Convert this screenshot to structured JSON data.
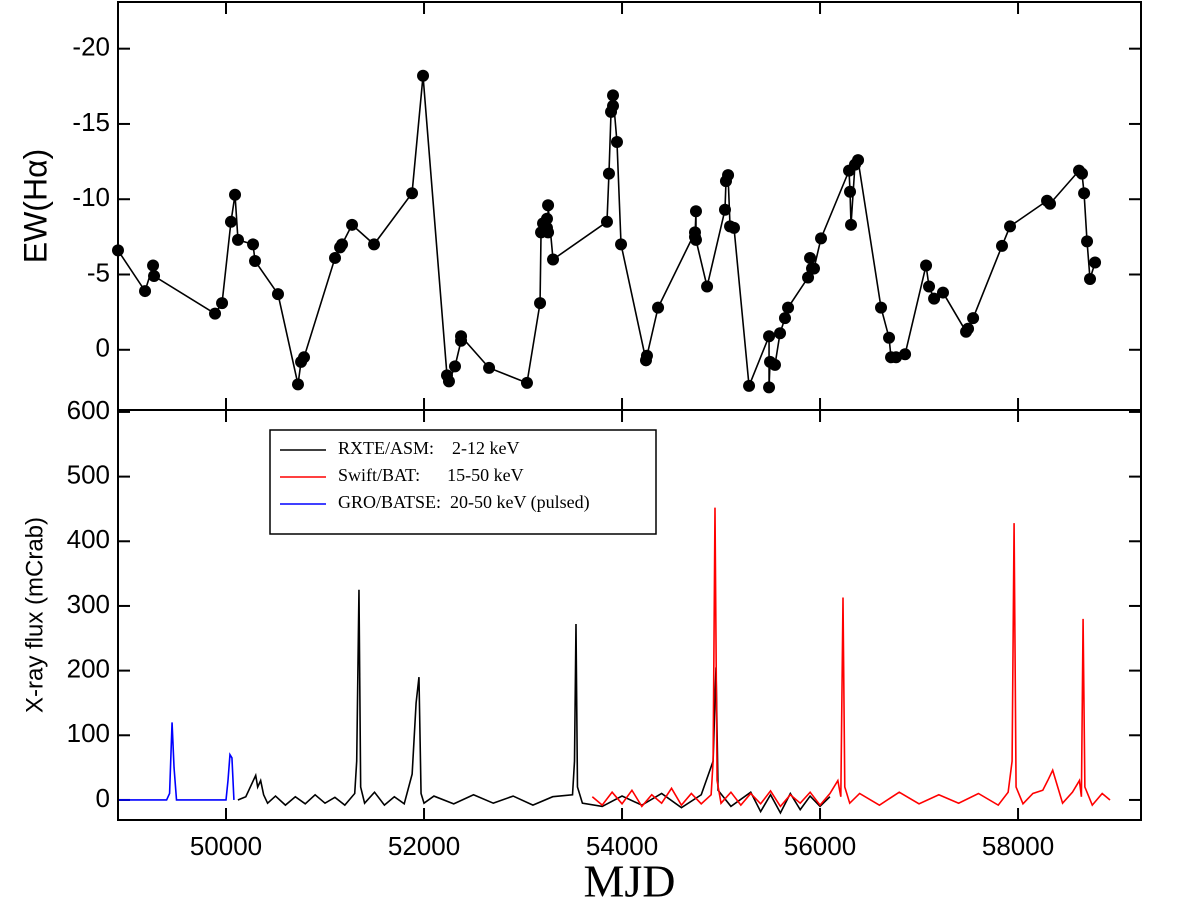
{
  "chart_data": [
    {
      "type": "line",
      "markers": true,
      "ylabel": "EW(Hα)",
      "xlim": [
        48909,
        59242
      ],
      "ylim": [
        4,
        -23.1
      ],
      "xticks": [
        50000,
        52000,
        54000,
        56000,
        58000
      ],
      "xtick_labels": false,
      "yticks": [
        -20,
        -15,
        -10,
        -5,
        0
      ],
      "series": [
        {
          "color": "#000000",
          "x": [
            48909,
            49182,
            49263,
            49273,
            49889,
            49960,
            50050,
            50091,
            50121,
            50273,
            50293,
            50525,
            50727,
            50758,
            50788,
            51101,
            51152,
            51172,
            51273,
            51495,
            51879,
            51990,
            52232,
            52252,
            52313,
            52374,
            52374,
            52657,
            53040,
            53172,
            53182,
            53202,
            53242,
            53242,
            53253,
            53253,
            53303,
            53848,
            53868,
            53889,
            53909,
            53909,
            53949,
            53990,
            54242,
            54252,
            54364,
            54737,
            54737,
            54747,
            54747,
            54859,
            55040,
            55050,
            55071,
            55091,
            55131,
            55283,
            55485,
            55485,
            55495,
            55545,
            55596,
            55646,
            55677,
            55879,
            55899,
            55919,
            55939,
            56010,
            56293,
            56303,
            56313,
            56353,
            56384,
            56616,
            56697,
            56717,
            56768,
            56859,
            57071,
            57101,
            57152,
            57242,
            57475,
            57495,
            57546,
            57838,
            57919,
            58293,
            58323,
            58616,
            58646,
            58667,
            58697,
            58727,
            58778
          ],
          "values": [
            -6.6,
            -3.9,
            -5.6,
            -4.9,
            -2.4,
            -3.1,
            -8.5,
            -10.3,
            -7.3,
            -7.0,
            -5.9,
            -3.7,
            2.3,
            0.8,
            0.5,
            -6.1,
            -6.8,
            -7.0,
            -8.3,
            -7.0,
            -10.4,
            -18.2,
            1.7,
            2.1,
            1.1,
            -0.6,
            -0.9,
            1.2,
            2.2,
            -3.1,
            -7.8,
            -8.4,
            -8.1,
            -8.7,
            -7.8,
            -9.6,
            -6.0,
            -8.5,
            -11.7,
            -15.8,
            -16.2,
            -16.9,
            -13.8,
            -7.0,
            0.7,
            0.4,
            -2.8,
            -7.8,
            -7.5,
            -9.2,
            -7.3,
            -4.2,
            -9.3,
            -11.2,
            -11.6,
            -8.2,
            -8.1,
            2.4,
            -0.9,
            2.5,
            0.8,
            1.0,
            -1.1,
            -2.1,
            -2.8,
            -4.8,
            -6.1,
            -5.4,
            -5.4,
            -7.4,
            -11.9,
            -10.5,
            -8.3,
            -12.3,
            -12.6,
            -2.8,
            -0.8,
            0.5,
            0.5,
            0.3,
            -5.6,
            -4.2,
            -3.4,
            -3.8,
            -1.2,
            -1.4,
            -2.1,
            -6.9,
            -8.2,
            -9.9,
            -9.7,
            -11.9,
            -11.7,
            -10.4,
            -7.2,
            -4.7,
            -5.8
          ]
        }
      ]
    },
    {
      "type": "line",
      "xlabel": "MJD",
      "ylabel": "X-ray flux (mCrab)",
      "xlim": [
        48909,
        59242
      ],
      "ylim": [
        -31,
        603
      ],
      "xticks": [
        50000,
        52000,
        54000,
        56000,
        58000
      ],
      "yticks": [
        0,
        100,
        200,
        300,
        400,
        500,
        600
      ],
      "legend": "upper left",
      "series": [
        {
          "name": "RXTE/ASM:    2-12 keV",
          "color": "#000000",
          "x": [
            50120,
            50200,
            50300,
            50320,
            50350,
            50380,
            50420,
            50500,
            50600,
            50700,
            50800,
            50900,
            51000,
            51100,
            51200,
            51300,
            51320,
            51343,
            51360,
            51400,
            51500,
            51600,
            51700,
            51800,
            51880,
            51920,
            51949,
            51970,
            52000,
            52100,
            52300,
            52500,
            52700,
            52900,
            53100,
            53300,
            53500,
            53520,
            53535,
            53550,
            53600,
            53800,
            54000,
            54200,
            54400,
            54600,
            54800,
            54920,
            54949,
            54970,
            55100,
            55300,
            55400,
            55500,
            55600,
            55700,
            55800,
            55900,
            56000,
            56100
          ],
          "values": [
            0,
            5,
            38,
            20,
            30,
            8,
            -5,
            6,
            -8,
            5,
            -6,
            8,
            -5,
            4,
            -8,
            10,
            60,
            325,
            20,
            -5,
            12,
            -8,
            5,
            -6,
            40,
            150,
            190,
            10,
            -5,
            6,
            -6,
            8,
            -5,
            6,
            -8,
            5,
            8,
            60,
            272,
            20,
            -5,
            -10,
            6,
            -8,
            10,
            -12,
            8,
            60,
            205,
            15,
            -10,
            12,
            -18,
            8,
            -20,
            10,
            -15,
            6,
            -10,
            5
          ]
        },
        {
          "name": "Swift/BAT:      15-50 keV",
          "color": "#ff0000",
          "x": [
            53700,
            53800,
            53900,
            54000,
            54100,
            54200,
            54300,
            54400,
            54500,
            54600,
            54700,
            54800,
            54900,
            54920,
            54939,
            54960,
            55000,
            55100,
            55200,
            55300,
            55400,
            55500,
            55600,
            55700,
            55800,
            55900,
            56000,
            56100,
            56180,
            56210,
            56232,
            56250,
            56300,
            56400,
            56600,
            56800,
            57000,
            57200,
            57400,
            57600,
            57800,
            57900,
            57940,
            57960,
            57980,
            58050,
            58150,
            58250,
            58300,
            58350,
            58450,
            58550,
            58620,
            58640,
            58657,
            58675,
            58750,
            58850,
            58929
          ],
          "values": [
            5,
            -8,
            12,
            -6,
            15,
            -10,
            8,
            -5,
            18,
            -8,
            10,
            -6,
            8,
            60,
            452,
            30,
            -5,
            12,
            -8,
            10,
            -6,
            14,
            -10,
            8,
            -5,
            12,
            -8,
            10,
            30,
            5,
            313,
            20,
            -5,
            10,
            -8,
            12,
            -6,
            8,
            -5,
            10,
            -8,
            12,
            60,
            428,
            20,
            -6,
            10,
            15,
            30,
            46,
            -5,
            12,
            30,
            5,
            280,
            20,
            -8,
            10,
            0
          ]
        },
        {
          "name": "GRO/BATSE:  20-50 keV (pulsed)",
          "color": "#0000ff",
          "x": [
            48909,
            49400,
            49430,
            49455,
            49475,
            49500,
            50000,
            50020,
            50040,
            50060,
            50080
          ],
          "values": [
            0,
            0,
            10,
            120,
            50,
            0,
            0,
            30,
            70,
            65,
            0
          ]
        }
      ]
    }
  ]
}
